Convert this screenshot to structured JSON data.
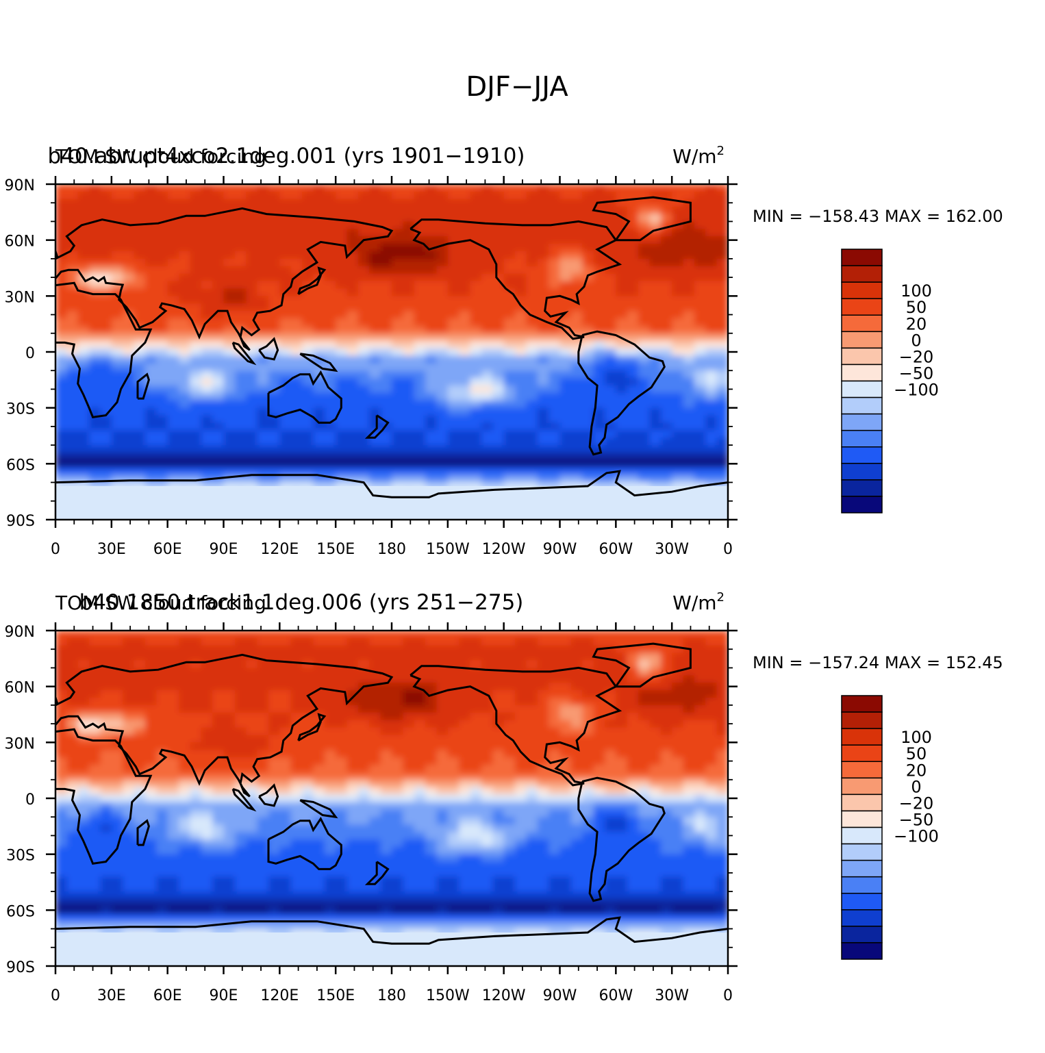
{
  "figure_title": "DJF−JJA",
  "chart_data": [
    {
      "type": "heatmap",
      "left_title": "TOM SW cloud forcing",
      "center_title": "b40.abrupt4xco2.1deg.001 (yrs 1901−1910)",
      "units_label": "W/m",
      "units_exp": "2",
      "min_max": "MIN = −158.43 MAX = 162.00",
      "min": -158.43,
      "max": 162.0,
      "xticks": [
        "0",
        "30E",
        "60E",
        "90E",
        "120E",
        "150E",
        "180",
        "150W",
        "120W",
        "90W",
        "60W",
        "30W",
        "0"
      ],
      "yticks": [
        "90N",
        "60N",
        "30N",
        "0",
        "30S",
        "60S",
        "90S"
      ],
      "xlim": [
        0,
        360
      ],
      "ylim": [
        -90,
        90
      ],
      "colorbar_labels": [
        "100",
        "50",
        "20",
        "0",
        "−20",
        "−50",
        "−100"
      ],
      "colorbar_levels": [
        -150,
        -125,
        -100,
        -75,
        -50,
        -35,
        -20,
        -10,
        0,
        10,
        20,
        35,
        50,
        75,
        100,
        125,
        150
      ]
    },
    {
      "type": "heatmap",
      "left_title": "TOM SW cloud forcing",
      "center_title": "b40.1850.track1.1deg.006 (yrs 251−275)",
      "units_label": "W/m",
      "units_exp": "2",
      "min_max": "MIN = −157.24 MAX = 152.45",
      "min": -157.24,
      "max": 152.45,
      "xticks": [
        "0",
        "30E",
        "60E",
        "90E",
        "120E",
        "150E",
        "180",
        "150W",
        "120W",
        "90W",
        "60W",
        "30W",
        "0"
      ],
      "yticks": [
        "90N",
        "60N",
        "30N",
        "0",
        "30S",
        "60S",
        "90S"
      ],
      "xlim": [
        0,
        360
      ],
      "ylim": [
        -90,
        90
      ],
      "colorbar_labels": [
        "100",
        "50",
        "20",
        "0",
        "−20",
        "−50",
        "−100"
      ],
      "colorbar_levels": [
        -150,
        -125,
        -100,
        -75,
        -50,
        -35,
        -20,
        -10,
        0,
        10,
        20,
        35,
        50,
        75,
        100,
        125,
        150
      ]
    }
  ],
  "colors": {
    "palette": [
      "#08087a",
      "#0a259e",
      "#0f3fd0",
      "#1f5af5",
      "#4a80f5",
      "#7ea6f7",
      "#b2cdfa",
      "#d8e8fb",
      "#fde6da",
      "#fbc6ac",
      "#f89a72",
      "#f56a3a",
      "#ea4416",
      "#d93309",
      "#b32006",
      "#8b0a02"
    ],
    "coast": "#000000"
  }
}
